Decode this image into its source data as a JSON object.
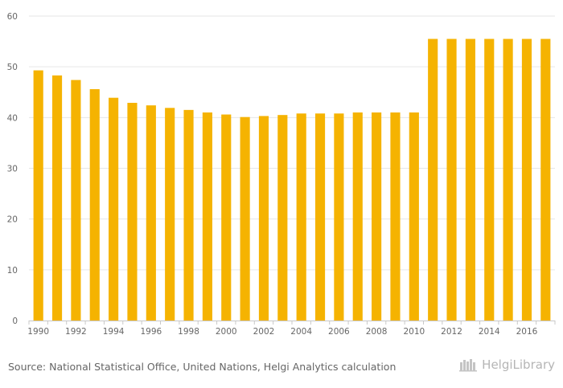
{
  "chart_data": {
    "type": "bar",
    "categories": [
      "1990",
      "1991",
      "1992",
      "1993",
      "1994",
      "1995",
      "1996",
      "1997",
      "1998",
      "1999",
      "2000",
      "2001",
      "2002",
      "2003",
      "2004",
      "2005",
      "2006",
      "2007",
      "2008",
      "2009",
      "2010",
      "2011",
      "2012",
      "2013",
      "2014",
      "2015",
      "2016",
      "2017"
    ],
    "values": [
      49.3,
      48.3,
      47.4,
      45.6,
      43.9,
      42.9,
      42.4,
      41.9,
      41.5,
      41.0,
      40.6,
      40.1,
      40.3,
      40.5,
      40.8,
      40.8,
      40.8,
      41.0,
      41.0,
      41.0,
      41.0,
      55.5,
      55.5,
      55.5,
      55.5,
      55.5,
      55.5,
      55.5
    ],
    "x_tick_labels": [
      "1990",
      "1992",
      "1994",
      "1996",
      "1998",
      "2000",
      "2002",
      "2004",
      "2006",
      "2008",
      "2010",
      "2012",
      "2014",
      "2016"
    ],
    "y_ticks": [
      "0",
      "10",
      "20",
      "30",
      "40",
      "50",
      "60"
    ],
    "ylim": [
      0,
      60
    ],
    "grid": true,
    "bar_color": "#f5b301"
  },
  "footer": {
    "source": "Source: National Statistical Office, United Nations, Helgi Analytics calculation",
    "brand": "HelgiLibrary"
  }
}
